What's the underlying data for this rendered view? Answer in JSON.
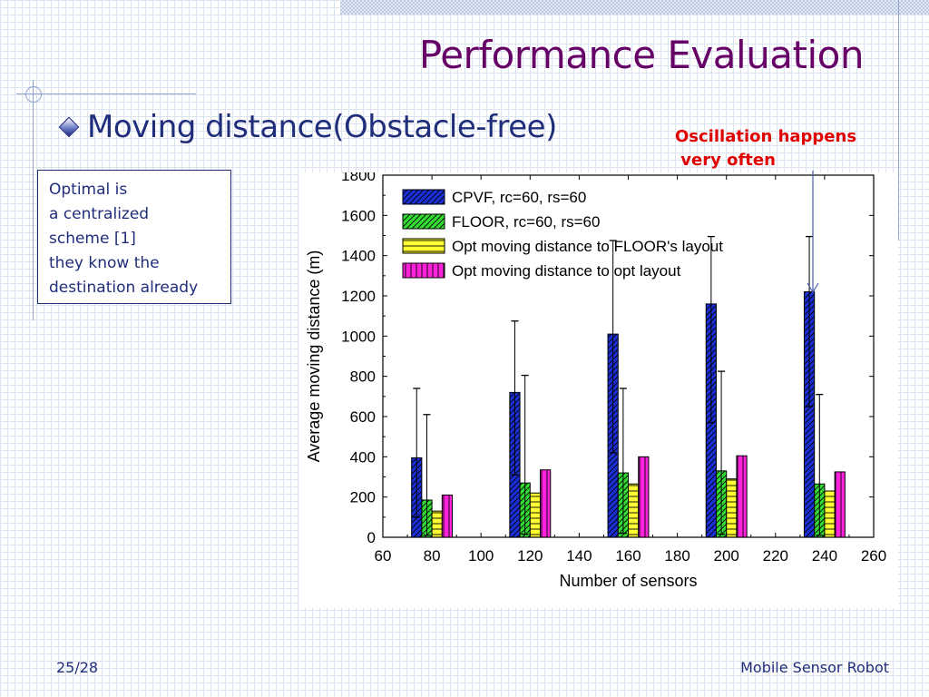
{
  "slide": {
    "title": "Performance Evaluation",
    "bullet": "Moving distance(Obstacle-free)",
    "annotation_lines": [
      "Oscillation happens",
      " very often"
    ],
    "note_lines": [
      "Optimal is",
      "a centralized",
      "scheme [1]",
      "they know the",
      "destination already"
    ],
    "footer_left": "25/28",
    "footer_right": "Mobile Sensor Robot"
  },
  "colors": {
    "title": "#660066",
    "text": "#1f2d7a",
    "annotation": "#e00000",
    "deco": "#8fa4cf"
  },
  "chart_data": {
    "type": "bar",
    "xlabel": "Number of sensors",
    "ylabel": "Average moving distance (m)",
    "xlim": [
      60,
      260
    ],
    "ylim": [
      0,
      1800
    ],
    "xticks": [
      60,
      80,
      100,
      120,
      140,
      160,
      180,
      200,
      220,
      240,
      260
    ],
    "yticks": [
      0,
      200,
      400,
      600,
      800,
      1000,
      1200,
      1400,
      1600,
      1800
    ],
    "categories": [
      80,
      120,
      160,
      200,
      240
    ],
    "legend_position": "top-left",
    "grid": false,
    "series": [
      {
        "name": "CPVF, rc=60, rs=60",
        "values": [
          395,
          720,
          1010,
          1160,
          1220
        ],
        "error_low": [
          100,
          310,
          420,
          570,
          650
        ],
        "error_high": [
          740,
          1075,
          1475,
          1495,
          1495
        ],
        "color": "#1a2fd6",
        "pattern": "diagonal"
      },
      {
        "name": "FLOOR, rc=60, rs=60",
        "values": [
          185,
          270,
          320,
          330,
          265
        ],
        "error_low": [
          10,
          15,
          20,
          15,
          10
        ],
        "error_high": [
          610,
          805,
          740,
          825,
          710
        ],
        "color": "#33dd33",
        "pattern": "diagonal"
      },
      {
        "name": "Opt moving distance to FLOOR's layout",
        "values": [
          130,
          220,
          265,
          290,
          230
        ],
        "color": "#ffff33",
        "pattern": "horizontal"
      },
      {
        "name": "Opt moving distance to opt layout",
        "values": [
          210,
          335,
          400,
          405,
          325
        ],
        "color": "#ff22dd",
        "pattern": "vertical"
      }
    ]
  }
}
